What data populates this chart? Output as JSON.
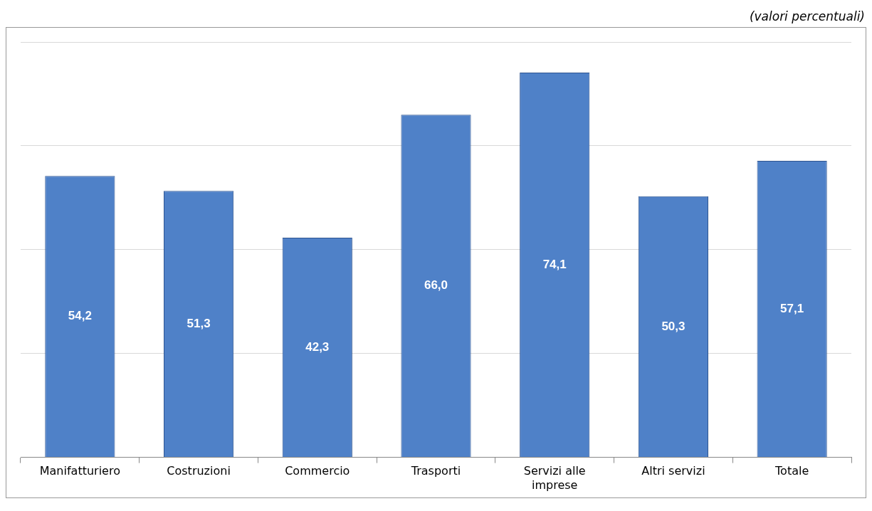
{
  "chart_data": {
    "type": "bar",
    "annotations": [
      "(valori percentuali)"
    ],
    "categories": [
      "Manifatturiero",
      "Costruzioni",
      "Commercio",
      "Trasporti",
      "Servizi alle imprese",
      "Altri servizi",
      "Totale"
    ],
    "values": [
      54.2,
      51.3,
      42.3,
      66.0,
      74.1,
      50.3,
      57.1
    ],
    "value_labels": [
      "54,2",
      "51,3",
      "42,3",
      "66,0",
      "74,1",
      "50,3",
      "57,1"
    ],
    "color": "#4f81c8",
    "ylim": [
      0,
      80
    ],
    "yticks": [
      0,
      20,
      40,
      60,
      80
    ],
    "grid": "y",
    "tick_labels": "x",
    "legend": false
  }
}
